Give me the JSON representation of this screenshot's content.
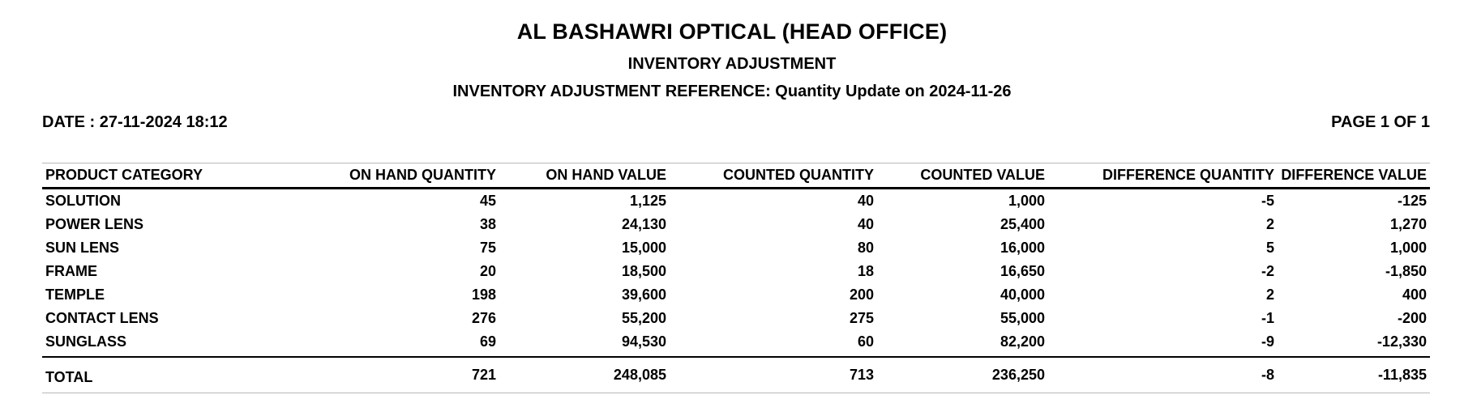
{
  "report": {
    "company": "AL BASHAWRI OPTICAL (HEAD OFFICE)",
    "title": "INVENTORY ADJUSTMENT",
    "reference": "INVENTORY ADJUSTMENT REFERENCE: Quantity Update on 2024-11-26",
    "date": "DATE : 27-11-2024 18:12",
    "page": "PAGE 1 OF 1"
  },
  "table": {
    "headers": [
      "PRODUCT CATEGORY",
      "ON HAND QUANTITY",
      "ON HAND VALUE",
      "COUNTED QUANTITY",
      "COUNTED VALUE",
      "DIFFERENCE QUANTITY",
      "DIFFERENCE VALUE"
    ],
    "rows": [
      [
        "SOLUTION",
        "45",
        "1,125",
        "40",
        "1,000",
        "-5",
        "-125"
      ],
      [
        "POWER LENS",
        "38",
        "24,130",
        "40",
        "25,400",
        "2",
        "1,270"
      ],
      [
        "SUN LENS",
        "75",
        "15,000",
        "80",
        "16,000",
        "5",
        "1,000"
      ],
      [
        "FRAME",
        "20",
        "18,500",
        "18",
        "16,650",
        "-2",
        "-1,850"
      ],
      [
        "TEMPLE",
        "198",
        "39,600",
        "200",
        "40,000",
        "2",
        "400"
      ],
      [
        "CONTACT LENS",
        "276",
        "55,200",
        "275",
        "55,000",
        "-1",
        "-200"
      ],
      [
        "SUNGLASS",
        "69",
        "94,530",
        "60",
        "82,200",
        "-9",
        "-12,330"
      ]
    ],
    "total": [
      "TOTAL",
      "721",
      "248,085",
      "713",
      "236,250",
      "-8",
      "-11,835"
    ]
  }
}
